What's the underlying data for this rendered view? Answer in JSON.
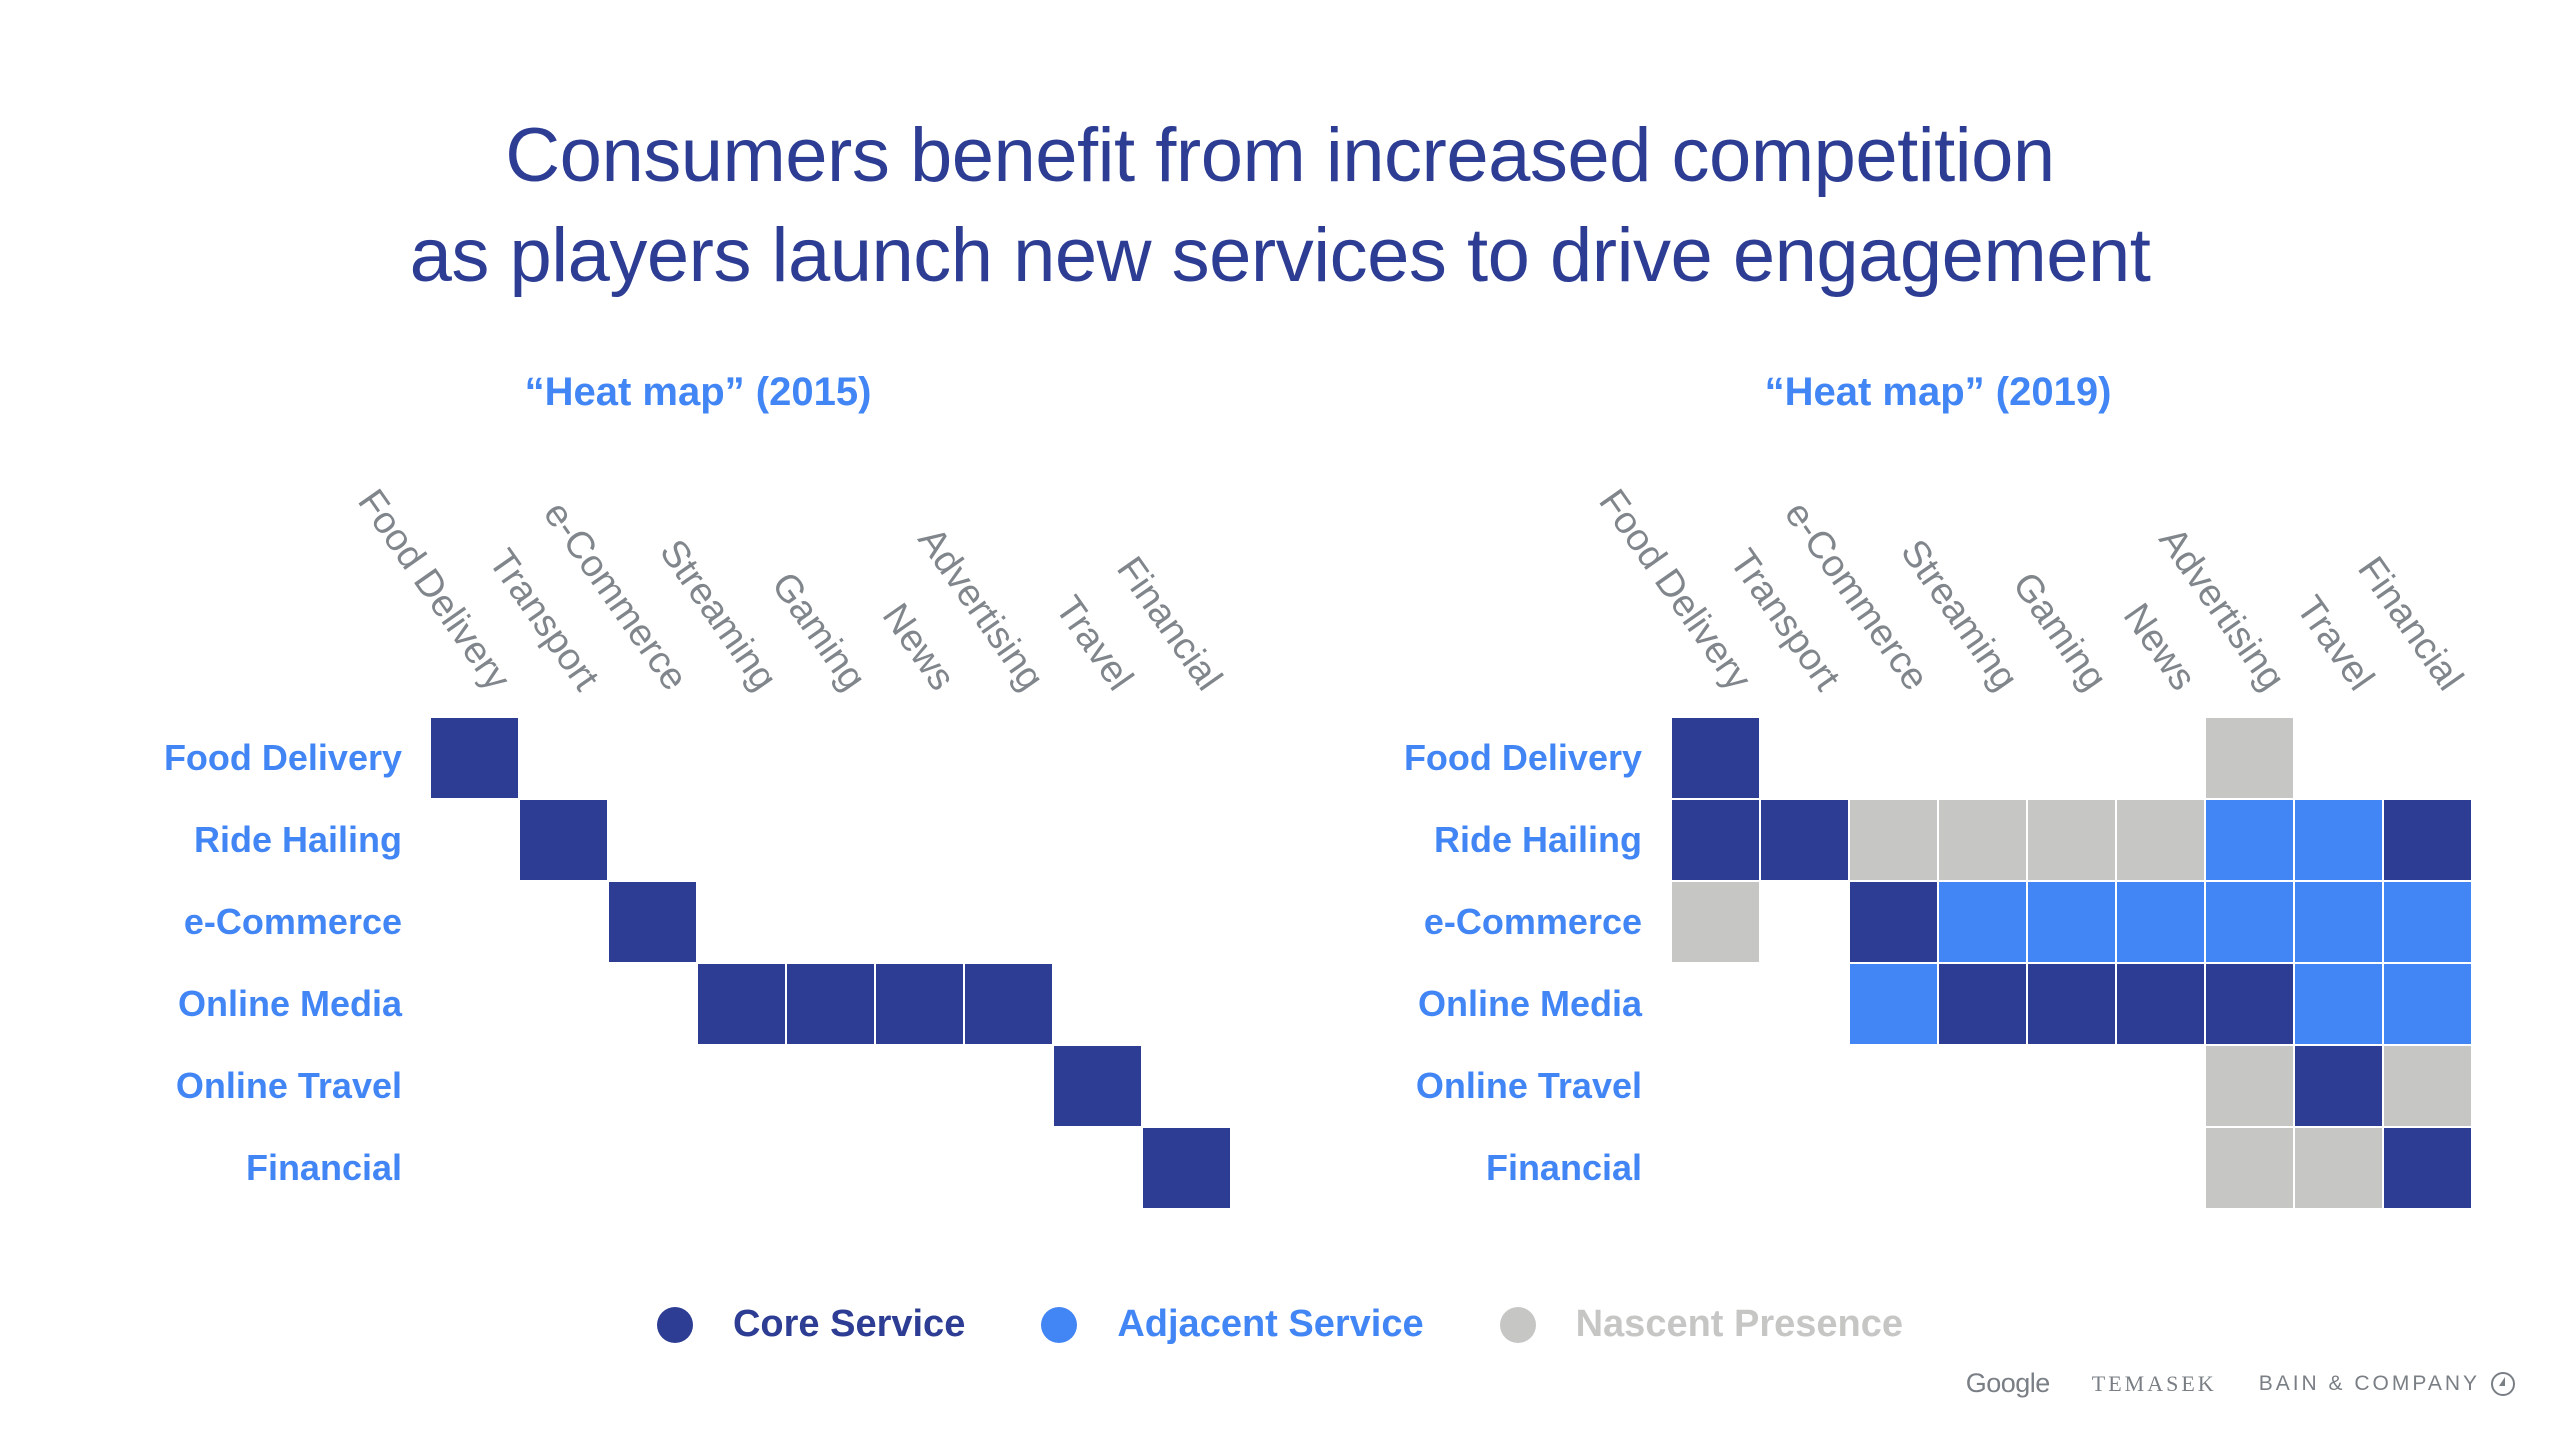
{
  "title": {
    "line1": "Consumers benefit from increased competition",
    "line2": "as players launch new services to drive engagement"
  },
  "legend": [
    {
      "key": "C",
      "label": "Core Service",
      "color": "#2d3d94"
    },
    {
      "key": "A",
      "label": "Adjacent Service",
      "color": "#4285f4"
    },
    {
      "key": "N",
      "label": "Nascent Presence",
      "color": "#c6c6c5"
    }
  ],
  "footer": {
    "logos": [
      "Google",
      "TEMASEK",
      "BAIN & COMPANY"
    ],
    "bain_icon": "bain-compass-icon"
  },
  "chart_data": [
    {
      "type": "heatmap",
      "title": "“Heat map” (2015)",
      "columns": [
        "Food Delivery",
        "Transport",
        "e-Commerce",
        "Streaming",
        "Gaming",
        "News",
        "Advertising",
        "Travel",
        "Financial"
      ],
      "rows": [
        "Food Delivery",
        "Ride Hailing",
        "e-Commerce",
        "Online Media",
        "Online Travel",
        "Financial"
      ],
      "values": [
        [
          "C",
          "",
          "",
          "",
          "",
          "",
          "",
          "",
          ""
        ],
        [
          "",
          "C",
          "",
          "",
          "",
          "",
          "",
          "",
          ""
        ],
        [
          "",
          "",
          "C",
          "",
          "",
          "",
          "",
          "",
          ""
        ],
        [
          "",
          "",
          "",
          "C",
          "C",
          "C",
          "C",
          "",
          ""
        ],
        [
          "",
          "",
          "",
          "",
          "",
          "",
          "",
          "C",
          ""
        ],
        [
          "",
          "",
          "",
          "",
          "",
          "",
          "",
          "",
          "C"
        ]
      ],
      "value_legend": {
        "C": "Core Service",
        "A": "Adjacent Service",
        "N": "Nascent Presence",
        "": "None"
      }
    },
    {
      "type": "heatmap",
      "title": "“Heat map” (2019)",
      "columns": [
        "Food Delivery",
        "Transport",
        "e-Commerce",
        "Streaming",
        "Gaming",
        "News",
        "Advertising",
        "Travel",
        "Financial"
      ],
      "rows": [
        "Food Delivery",
        "Ride Hailing",
        "e-Commerce",
        "Online Media",
        "Online Travel",
        "Financial"
      ],
      "values": [
        [
          "C",
          "",
          "",
          "",
          "",
          "",
          "N",
          "",
          ""
        ],
        [
          "C",
          "C",
          "N",
          "N",
          "N",
          "N",
          "A",
          "A",
          "C"
        ],
        [
          "N",
          "",
          "C",
          "A",
          "A",
          "A",
          "A",
          "A",
          "A"
        ],
        [
          "",
          "",
          "A",
          "C",
          "C",
          "C",
          "C",
          "A",
          "A"
        ],
        [
          "",
          "",
          "",
          "",
          "",
          "",
          "N",
          "C",
          "N"
        ],
        [
          "",
          "",
          "",
          "",
          "",
          "",
          "N",
          "N",
          "C"
        ]
      ],
      "value_legend": {
        "C": "Core Service",
        "A": "Adjacent Service",
        "N": "Nascent Presence",
        "": "None"
      }
    }
  ]
}
